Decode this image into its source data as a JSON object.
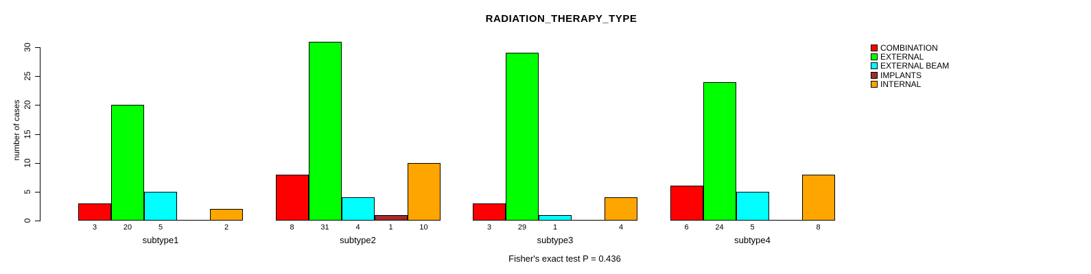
{
  "chart_data": {
    "type": "bar",
    "grouped": true,
    "title": "RADIATION_THERAPY_TYPE",
    "xlabel": "",
    "ylabel": "number of cases",
    "caption": "Fisher's exact test P = 0.436",
    "ylim": [
      0,
      30
    ],
    "yticks": [
      0,
      5,
      10,
      15,
      20,
      25,
      30
    ],
    "grid": false,
    "legend_position": "top-right-outside",
    "categories": [
      "subtype1",
      "subtype2",
      "subtype3",
      "subtype4"
    ],
    "series": [
      {
        "name": "COMBINATION",
        "color": "#FF0000",
        "values": [
          3,
          8,
          3,
          6
        ]
      },
      {
        "name": "EXTERNAL",
        "color": "#00FF00",
        "values": [
          20,
          31,
          29,
          24
        ]
      },
      {
        "name": "EXTERNAL BEAM",
        "color": "#00FFFF",
        "values": [
          5,
          4,
          1,
          5
        ]
      },
      {
        "name": "IMPLANTS",
        "color": "#A52A2A",
        "values": [
          0,
          1,
          0,
          0
        ]
      },
      {
        "name": "INTERNAL",
        "color": "#FFA500",
        "values": [
          2,
          10,
          4,
          8
        ]
      }
    ],
    "bar_value_labels": "shown under each bar; blank when value is 0"
  }
}
